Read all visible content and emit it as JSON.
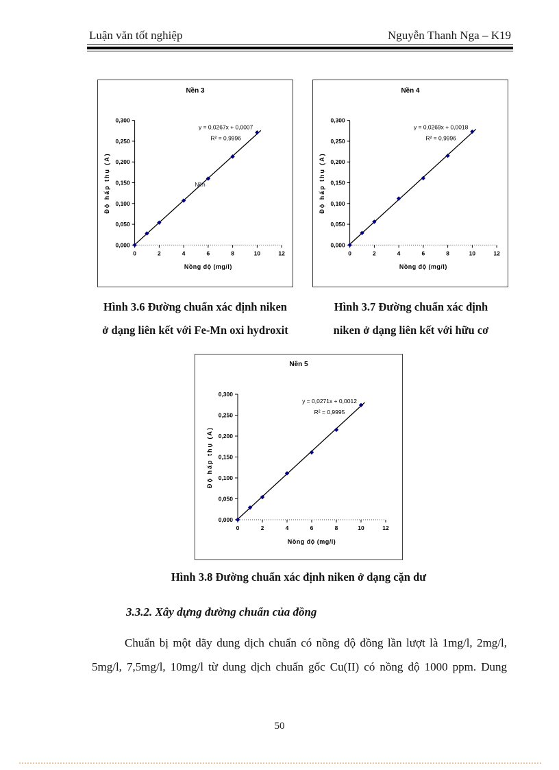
{
  "header": {
    "left": "Luận văn tốt nghiệp",
    "right": "Nguyễn Thanh Nga – K19"
  },
  "captions": {
    "fig36_line1": "Hình 3.6 Đường chuẩn xác định niken",
    "fig36_line2": "ở dạng liên kết với Fe-Mn oxi hydroxit",
    "fig37_line1": "Hình 3.7 Đường chuẩn xác định",
    "fig37_line2": "niken ở dạng liên kết với hữu cơ",
    "fig38": "Hình 3.8 Đường chuẩn xác định niken ở dạng cặn dư"
  },
  "section": {
    "heading": "3.3.2. Xây dựng đường chuẩn của đồng"
  },
  "paragraph": {
    "line1": "Chuẩn bị một dãy dung dịch chuẩn có nồng độ đồng lần lượt là 1mg/l, 2mg/l,",
    "line2": "5mg/l, 7,5mg/l, 10mg/l từ dung dịch chuẩn gốc Cu(II) có nồng độ 1000 ppm. Dung"
  },
  "footer": {
    "page_number": "50"
  },
  "colors": {
    "marker": "#000080",
    "trendline": "#000000",
    "axis": "#000000",
    "dotted_rule": "#eec49c"
  },
  "chart_data": [
    {
      "type": "scatter",
      "title": "Nền 3",
      "x": [
        0,
        1,
        2,
        4,
        6,
        8,
        10
      ],
      "y": [
        0.0,
        0.028,
        0.054,
        0.107,
        0.16,
        0.213,
        0.271
      ],
      "equation": "y = 0,0267x + 0,0007",
      "r_squared": "R² = 0,9996",
      "slope": 0.0267,
      "intercept": 0.0007,
      "xlabel": "Nồng độ (mg/l)",
      "ylabel": "Độ hấp thụ (A)",
      "xlim": [
        0,
        12
      ],
      "ylim": [
        0,
        0.3
      ],
      "xticks": [
        "0",
        "2",
        "4",
        "6",
        "8",
        "10",
        "12"
      ],
      "yticks": [
        "0,000",
        "0,050",
        "0,100",
        "0,150",
        "0,200",
        "0,250",
        "0,300"
      ],
      "annotation": {
        "text": "Nền",
        "x": 5.0,
        "y": 0.141
      },
      "trendline": true,
      "grid": false
    },
    {
      "type": "scatter",
      "title": "Nền 4",
      "x": [
        0,
        1,
        2,
        4,
        6,
        8,
        10
      ],
      "y": [
        0.0,
        0.029,
        0.056,
        0.112,
        0.161,
        0.215,
        0.273
      ],
      "equation": "y = 0,0269x + 0,0018",
      "r_squared": "R² = 0,9996",
      "slope": 0.0269,
      "intercept": 0.0018,
      "xlabel": "Nồng độ (mg/l)",
      "ylabel": "Độ hấp thụ (A)",
      "xlim": [
        0,
        12
      ],
      "ylim": [
        0,
        0.3
      ],
      "xticks": [
        "0",
        "2",
        "4",
        "6",
        "8",
        "10",
        "12"
      ],
      "yticks": [
        "0,000",
        "0,050",
        "0,100",
        "0,150",
        "0,200",
        "0,250",
        "0,300"
      ],
      "annotation": null,
      "trendline": true,
      "grid": false
    },
    {
      "type": "scatter",
      "title": "Nền 5",
      "x": [
        0,
        1,
        2,
        4,
        6,
        8,
        10
      ],
      "y": [
        0.0,
        0.029,
        0.054,
        0.111,
        0.161,
        0.215,
        0.274
      ],
      "equation": "y = 0,0271x + 0,0012",
      "r_squared": "R² = 0,9995",
      "slope": 0.0271,
      "intercept": 0.0012,
      "xlabel": "Nồng độ (mg/l)",
      "ylabel": "Độ hấp thụ (A)",
      "xlim": [
        0,
        12
      ],
      "ylim": [
        0,
        0.3
      ],
      "xticks": [
        "0",
        "2",
        "4",
        "6",
        "8",
        "10",
        "12"
      ],
      "yticks": [
        "0,000",
        "0,050",
        "0,100",
        "0,150",
        "0,200",
        "0,250",
        "0,300"
      ],
      "annotation": null,
      "trendline": true,
      "grid": false
    }
  ]
}
